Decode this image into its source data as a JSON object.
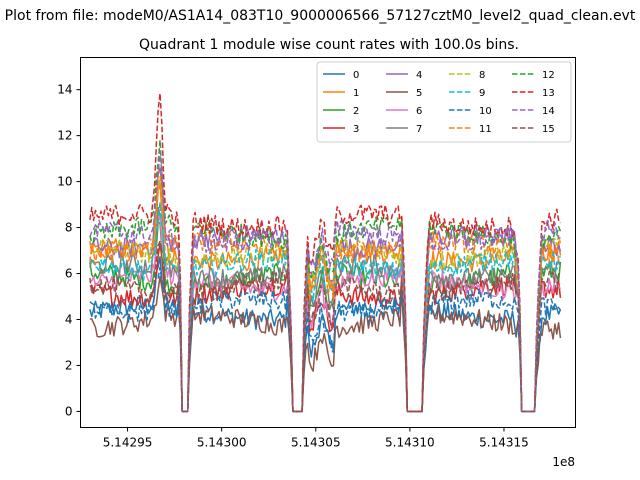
{
  "figure": {
    "suptitle": "Plot from file: modeM0/AS1A14_083T10_9000006566_57127cztM0_level2_quad_clean.evt"
  },
  "chart_data": {
    "type": "line",
    "title": "Quadrant 1 module wise count rates with 100.0s bins.",
    "xlabel": "",
    "ylabel": "",
    "x_offset_label": "1e8",
    "xlim": [
      5.142925,
      5.143188
    ],
    "ylim": [
      -0.7,
      15.4
    ],
    "xticks": [
      5.14295,
      5.143,
      5.14305,
      5.1431,
      5.14315
    ],
    "xtick_labels": [
      "5.14295",
      "5.14300",
      "5.14305",
      "5.14310",
      "5.14315"
    ],
    "yticks": [
      0,
      2,
      4,
      6,
      8,
      10,
      12,
      14
    ],
    "ytick_labels": [
      "0",
      "2",
      "4",
      "6",
      "8",
      "10",
      "12",
      "14"
    ],
    "grid": false,
    "legend_position": "top-right",
    "x_start": 5.14293,
    "x_end": 5.14318,
    "x_step_note": "100 s bins",
    "gaps": [
      [
        5.142979,
        5.142982
      ],
      [
        5.143037,
        5.143043
      ],
      [
        5.143098,
        5.143107
      ],
      [
        5.143159,
        5.143167
      ]
    ],
    "segment_edges": [
      5.142979,
      5.143037,
      5.143098,
      5.143159
    ],
    "flare_center": 5.142967,
    "series": [
      {
        "name": "0",
        "color": "#1f77b4",
        "style": "solid",
        "base": 4.3
      },
      {
        "name": "1",
        "color": "#ff7f0e",
        "style": "solid",
        "base": 6.8
      },
      {
        "name": "2",
        "color": "#2ca02c",
        "style": "solid",
        "base": 5.8
      },
      {
        "name": "3",
        "color": "#d62728",
        "style": "solid",
        "base": 5.2
      },
      {
        "name": "4",
        "color": "#9467bd",
        "style": "solid",
        "base": 7.4
      },
      {
        "name": "5",
        "color": "#8c564b",
        "style": "solid",
        "base": 3.9
      },
      {
        "name": "6",
        "color": "#e377c2",
        "style": "solid",
        "base": 5.6
      },
      {
        "name": "7",
        "color": "#7f7f7f",
        "style": "solid",
        "base": 6.1
      },
      {
        "name": "8",
        "color": "#bcbd22",
        "style": "dashed",
        "base": 6.9
      },
      {
        "name": "9",
        "color": "#17becf",
        "style": "dashed",
        "base": 6.4
      },
      {
        "name": "10",
        "color": "#1f77b4",
        "style": "dashed",
        "base": 4.6
      },
      {
        "name": "11",
        "color": "#ff7f0e",
        "style": "dashed",
        "base": 7.1
      },
      {
        "name": "12",
        "color": "#2ca02c",
        "style": "dashed",
        "base": 7.8
      },
      {
        "name": "13",
        "color": "#d62728",
        "style": "dashed",
        "base": 8.3
      },
      {
        "name": "14",
        "color": "#9467bd",
        "style": "dashed",
        "base": 7.6
      },
      {
        "name": "15",
        "color": "#8c564b",
        "style": "dashed",
        "base": 5.4
      }
    ]
  }
}
